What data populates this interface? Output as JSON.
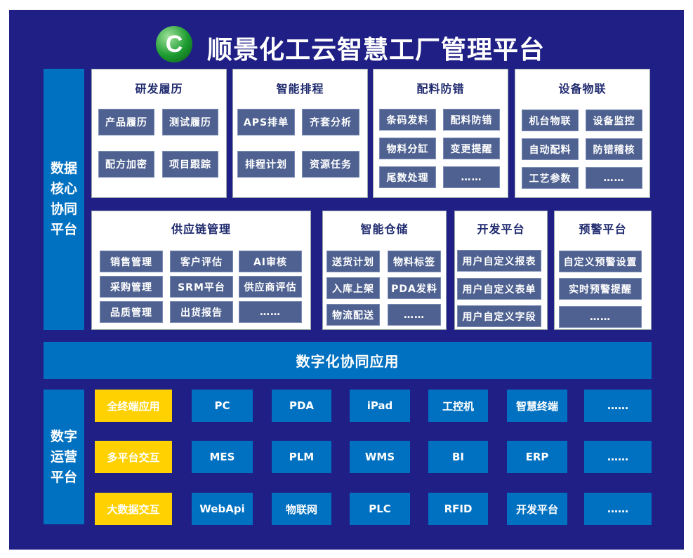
{
  "title": "顺景化工云智慧工厂管理平台",
  "logo_letter": "C",
  "core_label": "数据核心协同平台",
  "ops_label": "数字运营平台",
  "banner": "数字化协同应用",
  "cards": [
    {
      "title": "研发履历",
      "items": [
        "产品履历",
        "测试履历",
        "配方加密",
        "项目跟踪"
      ]
    },
    {
      "title": "智能排程",
      "items": [
        "APS排单",
        "齐套分析",
        "排程计划",
        "资源任务"
      ]
    },
    {
      "title": "配料防错",
      "items": [
        "条码发料",
        "配料防错",
        "物料分缸",
        "变更提醒",
        "尾数处理",
        "……"
      ]
    },
    {
      "title": "设备物联",
      "items": [
        "机台物联",
        "设备监控",
        "自动配料",
        "防错稽核",
        "工艺参数",
        "……"
      ]
    },
    {
      "title": "供应链管理",
      "items": [
        "销售管理",
        "客户评估",
        "AI审核",
        "采购管理",
        "SRM平台",
        "供应商评估",
        "品质管理",
        "出货报告",
        "……"
      ]
    },
    {
      "title": "智能仓储",
      "items": [
        "送货计划",
        "物料标签",
        "入库上架",
        "PDA发料",
        "物流配送",
        "……"
      ]
    },
    {
      "title": "开发平台",
      "items": [
        "用户自定义报表",
        "用户自定义表单",
        "用户自定义字段"
      ]
    },
    {
      "title": "预警平台",
      "items": [
        "自定义预警设置",
        "实时预警提醒",
        "……"
      ]
    }
  ],
  "rows": [
    {
      "label": "全终端应用",
      "items": [
        "PC",
        "PDA",
        "iPad",
        "工控机",
        "智慧终端",
        "……"
      ]
    },
    {
      "label": "多平台交互",
      "items": [
        "MES",
        "PLM",
        "WMS",
        "BI",
        "ERP",
        "……"
      ]
    },
    {
      "label": "大数据交互",
      "items": [
        "WebApi",
        "物联网",
        "PLC",
        "RFID",
        "开发平台",
        "……"
      ]
    }
  ],
  "colors": {
    "background": "#1f1f85",
    "accent": "#0070c0",
    "highlight": "#ffd100",
    "button": "#4e6190"
  }
}
